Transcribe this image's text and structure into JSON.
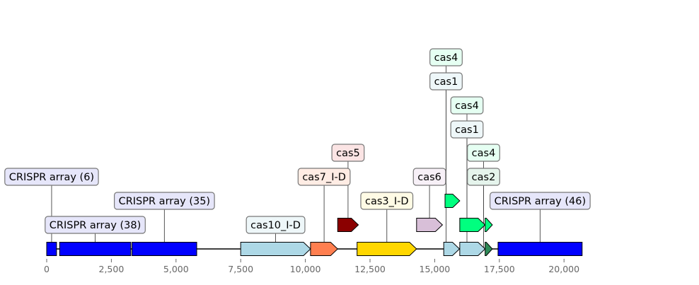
{
  "axis": {
    "min": 0,
    "max": 21000,
    "ticks": [
      {
        "value": 0,
        "label": "0"
      },
      {
        "value": 2500,
        "label": "2,500"
      },
      {
        "value": 5000,
        "label": "5,000"
      },
      {
        "value": 7500,
        "label": "7,500"
      },
      {
        "value": 10000,
        "label": "10,000"
      },
      {
        "value": 12500,
        "label": "12,500"
      },
      {
        "value": 15000,
        "label": "15,000"
      },
      {
        "value": 17500,
        "label": "17,500"
      },
      {
        "value": 20000,
        "label": "20,000"
      }
    ]
  },
  "sequence": {
    "start": 0,
    "end": 20600
  },
  "features": [
    {
      "id": "crispr-array-6",
      "label": "CRISPR array (6)",
      "start": 0,
      "end": 380,
      "strand": 0,
      "color": "#0000FF",
      "label_bg": "#E6E6FA"
    },
    {
      "id": "crispr-array-38",
      "label": "CRISPR array (38)",
      "start": 500,
      "end": 3250,
      "strand": 0,
      "color": "#0000FF",
      "label_bg": "#E6E6FA"
    },
    {
      "id": "crispr-array-35",
      "label": "CRISPR array (35)",
      "start": 3300,
      "end": 5800,
      "strand": 0,
      "color": "#0000FF",
      "label_bg": "#E6E6FA"
    },
    {
      "id": "cas10-i-d",
      "label": "cas10_I-D",
      "start": 7500,
      "end": 10200,
      "strand": 1,
      "color": "#ADD8E6",
      "label_bg": "#EEF7F9"
    },
    {
      "id": "cas7-i-d",
      "label": "cas7_I-D",
      "start": 10200,
      "end": 11250,
      "strand": 1,
      "color": "#FF7F50",
      "label_bg": "#FFECE4"
    },
    {
      "id": "cas5",
      "label": "cas5",
      "start": 11250,
      "end": 12050,
      "strand": 1,
      "color": "#8B0000",
      "label_bg": "#FBE4E4"
    },
    {
      "id": "cas3-i-d",
      "label": "cas3_I-D",
      "start": 12000,
      "end": 14300,
      "strand": 1,
      "color": "#FFD700",
      "label_bg": "#FFFBE5"
    },
    {
      "id": "cas6",
      "label": "cas6",
      "start": 14300,
      "end": 15300,
      "strand": 1,
      "color": "#D8BFD8",
      "label_bg": "#F7F0F7"
    },
    {
      "id": "cas4-a",
      "label": "cas4",
      "start": 15400,
      "end": 15970,
      "strand": 1,
      "color": "#00FF7F",
      "label_bg": "#E5FFF2"
    },
    {
      "id": "cas1-a",
      "label": "cas1",
      "start": 15350,
      "end": 15960,
      "strand": 1,
      "color": "#ADD8E6",
      "label_bg": "#EEF7F9"
    },
    {
      "id": "cas4-b",
      "label": "cas4",
      "start": 15970,
      "end": 16950,
      "strand": 1,
      "color": "#00FF7F",
      "label_bg": "#E5FFF2"
    },
    {
      "id": "cas1-b",
      "label": "cas1",
      "start": 15970,
      "end": 16950,
      "strand": 1,
      "color": "#ADD8E6",
      "label_bg": "#EEF7F9"
    },
    {
      "id": "cas4-c",
      "label": "cas4",
      "start": 16950,
      "end": 17230,
      "strand": 1,
      "color": "#00FF7F",
      "label_bg": "#E5FFF2"
    },
    {
      "id": "cas2",
      "label": "cas2",
      "start": 16950,
      "end": 17230,
      "strand": 1,
      "color": "#2E8B57",
      "label_bg": "#E5F4EC"
    },
    {
      "id": "crispr-array-46",
      "label": "CRISPR array (46)",
      "start": 17450,
      "end": 20700,
      "strand": 0,
      "color": "#0000FF",
      "label_bg": "#E6E6FA"
    }
  ]
}
